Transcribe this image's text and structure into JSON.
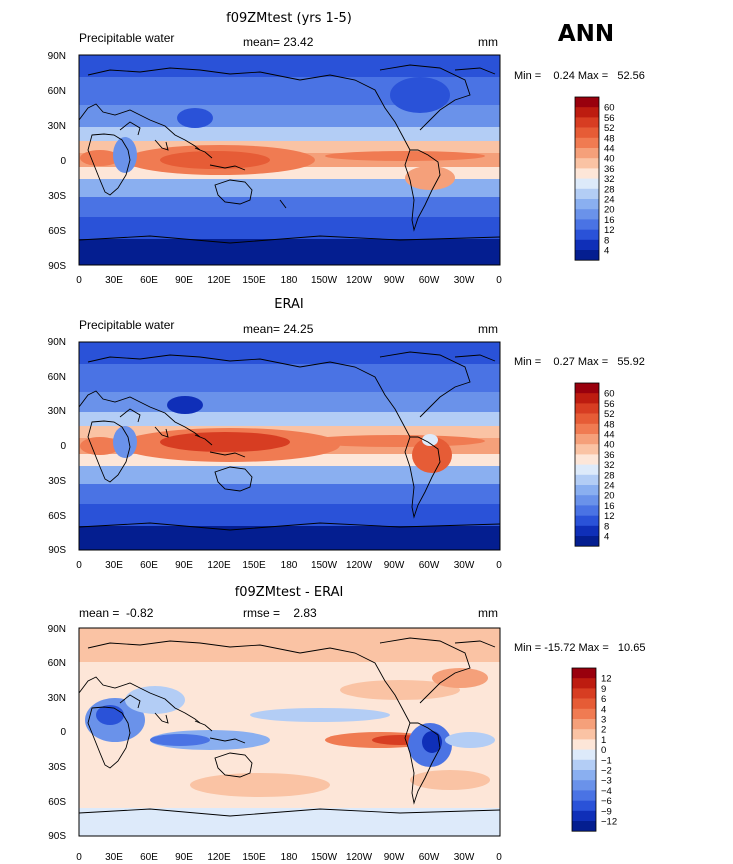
{
  "season": "ANN",
  "lon_ticks": [
    "0",
    "30E",
    "60E",
    "90E",
    "120E",
    "150E",
    "180",
    "150W",
    "120W",
    "90W",
    "60W",
    "30W",
    "0"
  ],
  "lat_ticks": [
    "90N",
    "60N",
    "30N",
    "0",
    "30S",
    "60S",
    "90S"
  ],
  "panels": [
    {
      "title": "f09ZMtest (yrs 1-5)",
      "left_label": "Precipitable water",
      "center_label": "mean=  23.42",
      "right_label": "mm",
      "minmax": "Min =    0.24 Max =   52.56",
      "levels": [
        "60",
        "56",
        "52",
        "48",
        "44",
        "40",
        "36",
        "32",
        "28",
        "24",
        "20",
        "16",
        "12",
        "8",
        "4"
      ],
      "colors": [
        "#99000d",
        "#bd1c10",
        "#d73d22",
        "#e65c36",
        "#f07b52",
        "#f5a07a",
        "#fac3a4",
        "#fde6d8",
        "#ddeafa",
        "#b3cdf5",
        "#8aaff0",
        "#6a92ea",
        "#4a73e4",
        "#2a52d8",
        "#0f2fb8",
        "#041e90"
      ]
    },
    {
      "title": "ERAI",
      "left_label": "Precipitable water",
      "center_label": "mean=  24.25",
      "right_label": "mm",
      "minmax": "Min =    0.27 Max =   55.92",
      "levels": [
        "60",
        "56",
        "52",
        "48",
        "44",
        "40",
        "36",
        "32",
        "28",
        "24",
        "20",
        "16",
        "12",
        "8",
        "4"
      ],
      "colors": [
        "#99000d",
        "#bd1c10",
        "#d73d22",
        "#e65c36",
        "#f07b52",
        "#f5a07a",
        "#fac3a4",
        "#fde6d8",
        "#ddeafa",
        "#b3cdf5",
        "#8aaff0",
        "#6a92ea",
        "#4a73e4",
        "#2a52d8",
        "#0f2fb8",
        "#041e90"
      ]
    },
    {
      "title": "f09ZMtest - ERAI",
      "left_label": "mean =  -0.82",
      "center_label": "rmse =    2.83",
      "right_label": "mm",
      "minmax": "Min = -15.72 Max =   10.65",
      "levels": [
        "12",
        "9",
        "6",
        "4",
        "3",
        "2",
        "1",
        "0",
        "−1",
        "−2",
        "−3",
        "−4",
        "−6",
        "−9",
        "−12"
      ],
      "colors": [
        "#99000d",
        "#bd1c10",
        "#d73d22",
        "#e65c36",
        "#f07b52",
        "#f5a07a",
        "#fac3a4",
        "#fde6d8",
        "#ddeafa",
        "#b3cdf5",
        "#8aaff0",
        "#6a92ea",
        "#4a73e4",
        "#2a52d8",
        "#0f2fb8",
        "#041e90"
      ]
    }
  ]
}
